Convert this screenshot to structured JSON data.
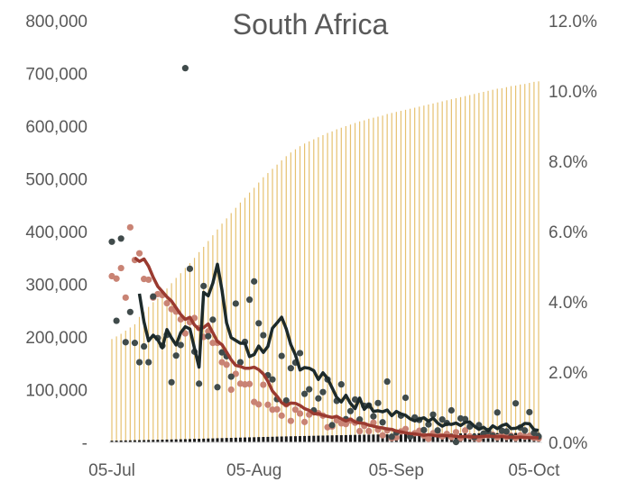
{
  "chart_data": {
    "type": "combo",
    "title": "South Africa",
    "x_axis": {
      "start_date": "2020-07-05",
      "end_date": "2020-10-06",
      "tick_labels": [
        "05-Jul",
        "05-Aug",
        "05-Sep",
        "05-Oct"
      ],
      "tick_dates": [
        "2020-07-05",
        "2020-08-05",
        "2020-09-05",
        "2020-10-05"
      ]
    },
    "y_left": {
      "range": [
        0,
        800000
      ],
      "tick_labels": [
        "-",
        "100,000",
        "200,000",
        "300,000",
        "400,000",
        "500,000",
        "600,000",
        "700,000",
        "800,000"
      ],
      "tick_values": [
        0,
        100000,
        200000,
        300000,
        400000,
        500000,
        600000,
        700000,
        800000
      ]
    },
    "y_right": {
      "range": [
        0,
        0.12
      ],
      "tick_labels": [
        "0.0%",
        "2.0%",
        "4.0%",
        "6.0%",
        "8.0%",
        "10.0%",
        "12.0%"
      ],
      "tick_values": [
        0,
        0.02,
        0.04,
        0.06,
        0.08,
        0.1,
        0.12
      ]
    },
    "grid": false,
    "legend": "none",
    "colors": {
      "cumulative_bars": "#e6c170",
      "deaths_bars": "#1a1a1a",
      "dark_points": "#404b4b",
      "dark_line": "#1d2a2a",
      "red_points": "#c98374",
      "red_line": "#9a3a30",
      "axis_text": "#595959"
    },
    "cumulative_bars": {
      "axis": "left",
      "values": [
        196000,
        201000,
        206000,
        212000,
        218000,
        224000,
        238000,
        247000,
        257000,
        266000,
        273000,
        282000,
        292000,
        302000,
        312000,
        321000,
        331000,
        340000,
        350000,
        361000,
        371000,
        382000,
        393000,
        404000,
        415000,
        425000,
        435000,
        445000,
        455000,
        464000,
        474000,
        483000,
        493000,
        503000,
        511000,
        519000,
        527000,
        535000,
        543000,
        550000,
        556000,
        562000,
        567000,
        571000,
        575000,
        579000,
        583000,
        587000,
        590000,
        594000,
        597000,
        600000,
        603000,
        606000,
        609000,
        611000,
        614000,
        616000,
        618000,
        620000,
        623000,
        625000,
        627000,
        629000,
        631000,
        633000,
        635000,
        637000,
        639000,
        641000,
        643000,
        645000,
        647000,
        649000,
        651000,
        653000,
        655000,
        657000,
        659000,
        661000,
        663000,
        665000,
        667000,
        669000,
        671000,
        672000,
        674000,
        676000,
        677000,
        679000,
        680000,
        682000,
        684000,
        685000
      ]
    },
    "deaths_bars": {
      "axis": "left",
      "values": [
        3200,
        3300,
        3500,
        3700,
        3800,
        4000,
        4100,
        4300,
        4500,
        4700,
        4900,
        5100,
        5300,
        5500,
        5700,
        5900,
        6100,
        6300,
        6600,
        6800,
        7000,
        7300,
        7500,
        7800,
        8000,
        8300,
        8500,
        8800,
        9000,
        9300,
        9500,
        9700,
        10000,
        10200,
        10400,
        10600,
        10900,
        11100,
        11300,
        11500,
        11700,
        11900,
        12100,
        12300,
        12500,
        12700,
        12900,
        13100,
        13300,
        13500,
        13600,
        13800,
        14000,
        14200,
        14300,
        14500,
        14600,
        14800,
        14900,
        15100,
        15200,
        15300,
        15500,
        15600,
        15700,
        15900,
        16000,
        16100,
        16200,
        16300,
        16400,
        16500,
        16600,
        16700,
        16800,
        16900,
        17000,
        17100,
        17100,
        17200,
        17300,
        17400,
        17500,
        17500,
        17600,
        17700,
        17700,
        17800,
        17900,
        17900,
        18000,
        18100,
        18100,
        18200
      ]
    },
    "dark_points": {
      "axis": "right",
      "values": [
        0.0571,
        0.0346,
        0.058,
        0.0285,
        0.0371,
        0.0283,
        0.0228,
        0.0273,
        0.0228,
        0.0415,
        0.0297,
        0.0275,
        0.0306,
        0.0171,
        0.0247,
        0.0277,
        0.1065,
        0.0494,
        0.0258,
        0.0167,
        0.0445,
        0.0302,
        0.0349,
        0.0157,
        0.0256,
        0.0245,
        0.0187,
        0.0395,
        0.0228,
        0.0286,
        0.0406,
        0.0458,
        0.0339,
        0.0305,
        0.0191,
        0.0179,
        0.0123,
        0.0246,
        0.0119,
        0.0211,
        0.0227,
        0.0254,
        0.0138,
        0.0151,
        0.0091,
        0.0125,
        0.0143,
        0.0179,
        0.0049,
        0.0118,
        0.0165,
        0.0066,
        0.0089,
        0.0122,
        0.0065,
        0.0104,
        0.0105,
        0.0074,
        0.0112,
        0.0057,
        0.0173,
        0.0016,
        0.0028,
        0.0076,
        0.0127,
        0.0016,
        0.0071,
        0.0064,
        0.0035,
        0.0051,
        0.0079,
        0.0034,
        0.0065,
        0.0055,
        0.0091,
        0.0001,
        0.0068,
        0.0066,
        0.0045,
        0.0015,
        0.0049,
        0.0025,
        0.0032,
        0.0019,
        0.0085,
        0.0033,
        0.0031,
        0.0016,
        0.0111,
        0.0042,
        0.0034,
        0.0086,
        0.0027,
        0.0017
      ]
    },
    "dark_line": {
      "axis": "right",
      "start_index": 6,
      "values": [
        0.0423,
        0.0343,
        0.0289,
        0.0305,
        0.0292,
        0.0269,
        0.0321,
        0.0297,
        0.0277,
        0.0312,
        0.0329,
        0.0323,
        0.0268,
        0.0214,
        0.0427,
        0.0417,
        0.0453,
        0.0507,
        0.0433,
        0.034,
        0.0298,
        0.029,
        0.0282,
        0.0282,
        0.0244,
        0.025,
        0.0274,
        0.0256,
        0.0273,
        0.0325,
        0.034,
        0.0356,
        0.0323,
        0.0278,
        0.0249,
        0.0206,
        0.0213,
        0.0211,
        0.0204,
        0.0179,
        0.0198,
        0.0182,
        0.0155,
        0.0128,
        0.0115,
        0.0134,
        0.0111,
        0.0096,
        0.0126,
        0.0094,
        0.0108,
        0.0088,
        0.009,
        0.0087,
        0.0092,
        0.0076,
        0.0088,
        0.0081,
        0.0077,
        0.0067,
        0.0061,
        0.0066,
        0.007,
        0.006,
        0.0069,
        0.0055,
        0.0046,
        0.0053,
        0.0051,
        0.0055,
        0.0048,
        0.0057,
        0.0058,
        0.0046,
        0.0037,
        0.0043,
        0.0033,
        0.0047,
        0.0039,
        0.0048,
        0.0052,
        0.0039,
        0.004,
        0.0045,
        0.0054,
        0.0053,
        0.0036,
        0.0034
      ]
    },
    "red_points": {
      "axis": "right",
      "values": [
        0.0473,
        0.0466,
        0.0496,
        0.0412,
        0.0612,
        0.0519,
        0.0538,
        0.0465,
        0.0463,
        0.0412,
        0.0422,
        0.0419,
        0.0396,
        0.0379,
        0.0372,
        0.035,
        0.031,
        0.0342,
        0.0354,
        0.0325,
        0.03,
        0.0316,
        0.0283,
        0.0283,
        0.0228,
        0.0221,
        0.015,
        0.0195,
        0.0167,
        0.0165,
        0.0166,
        0.0115,
        0.0108,
        0.0164,
        0.0107,
        0.0093,
        0.0094,
        0.0076,
        0.0108,
        0.0061,
        0.0093,
        0.0082,
        0.0058,
        0.0079,
        0.0087,
        0.0083,
        0.0076,
        0.0043,
        0.0045,
        0.0063,
        0.0054,
        0.0052,
        0.0062,
        0.0056,
        0.0032,
        0.0047,
        0.0032,
        0.0056,
        0.0036,
        0.002,
        0.0034,
        0.0012,
        0.0014,
        0.0031,
        0.0038,
        0.0021,
        0.0026,
        0.0033,
        0.0019,
        0.001,
        0.0026,
        0.0025,
        0.0017,
        0.0024,
        0.0015,
        0.0029,
        0.0012,
        0.0034,
        0.0017,
        0.0013,
        0.0009,
        0.0019,
        0.002,
        0.0022,
        0.0014,
        0.0022,
        0.0015,
        0.0019,
        0.0012,
        0.002,
        0.0016,
        0.0018,
        0.0013,
        0.0011
      ]
    },
    "red_line": {
      "axis": "right",
      "start_index": 5,
      "values": [
        0.0525,
        0.0515,
        0.0522,
        0.0501,
        0.047,
        0.0444,
        0.0429,
        0.0414,
        0.0402,
        0.0383,
        0.0364,
        0.035,
        0.0356,
        0.0334,
        0.0322,
        0.0327,
        0.0337,
        0.0312,
        0.0287,
        0.0278,
        0.0257,
        0.0235,
        0.0219,
        0.0216,
        0.0211,
        0.0211,
        0.0214,
        0.0207,
        0.0195,
        0.0174,
        0.0146,
        0.0131,
        0.0113,
        0.0105,
        0.0112,
        0.0111,
        0.0105,
        0.0096,
        0.0091,
        0.0081,
        0.0082,
        0.0077,
        0.0074,
        0.0071,
        0.0074,
        0.0067,
        0.0061,
        0.0066,
        0.0058,
        0.0055,
        0.0054,
        0.0049,
        0.0046,
        0.0043,
        0.0041,
        0.0038,
        0.0037,
        0.0032,
        0.003,
        0.0027,
        0.0025,
        0.0024,
        0.0022,
        0.002,
        0.0022,
        0.002,
        0.0018,
        0.002,
        0.0019,
        0.0019,
        0.0017,
        0.0016,
        0.0017,
        0.0016,
        0.0015,
        0.0016,
        0.0017,
        0.0018,
        0.0017,
        0.0016,
        0.0017,
        0.0015,
        0.0015,
        0.0014,
        0.0015,
        0.0014,
        0.0013,
        0.0013,
        0.0013
      ]
    }
  }
}
